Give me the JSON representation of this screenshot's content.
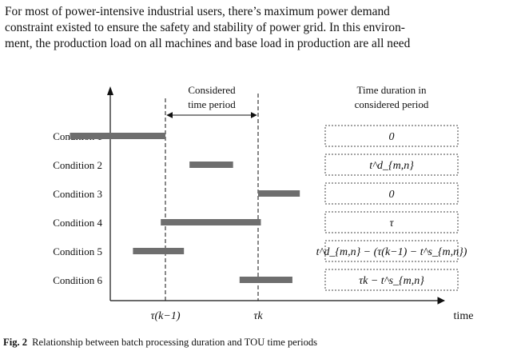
{
  "intro": {
    "lines": [
      "For most of power-intensive industrial users, there’s maximum power demand",
      "constraint existed to ensure the safety and stability of power grid. In this environ-",
      "ment, the production load on all machines and base load in production are all need"
    ]
  },
  "figure": {
    "considered_label_line1": "Considered",
    "considered_label_line2": "time period",
    "duration_header_line1": "Time duration in",
    "duration_header_line2": "considered period",
    "x_axis_label": "time",
    "tau_k_minus_1": "τ(k−1)",
    "tau_k": "τk",
    "conditions": [
      {
        "label": "Condition 1",
        "duration": "0",
        "bar_start": -1.03,
        "bar_end": 0.0
      },
      {
        "label": "Condition 2",
        "duration": "t^d_{m,n}",
        "bar_start": 0.26,
        "bar_end": 0.73
      },
      {
        "label": "Condition 3",
        "duration": "0",
        "bar_start": 1.0,
        "bar_end": 1.45
      },
      {
        "label": "Condition 4",
        "duration": "τ",
        "bar_start": -0.05,
        "bar_end": 1.03
      },
      {
        "label": "Condition 5",
        "duration": "t^d_{m,n} − (τ(k−1) − t^s_{m,n})",
        "bar_start": -0.35,
        "bar_end": 0.2
      },
      {
        "label": "Condition 6",
        "duration": "τk − t^s_{m,n}",
        "bar_start": 0.8,
        "bar_end": 1.37
      }
    ]
  },
  "caption": {
    "label": "Fig. 2",
    "text": "Relationship between batch processing duration and TOU time periods"
  }
}
